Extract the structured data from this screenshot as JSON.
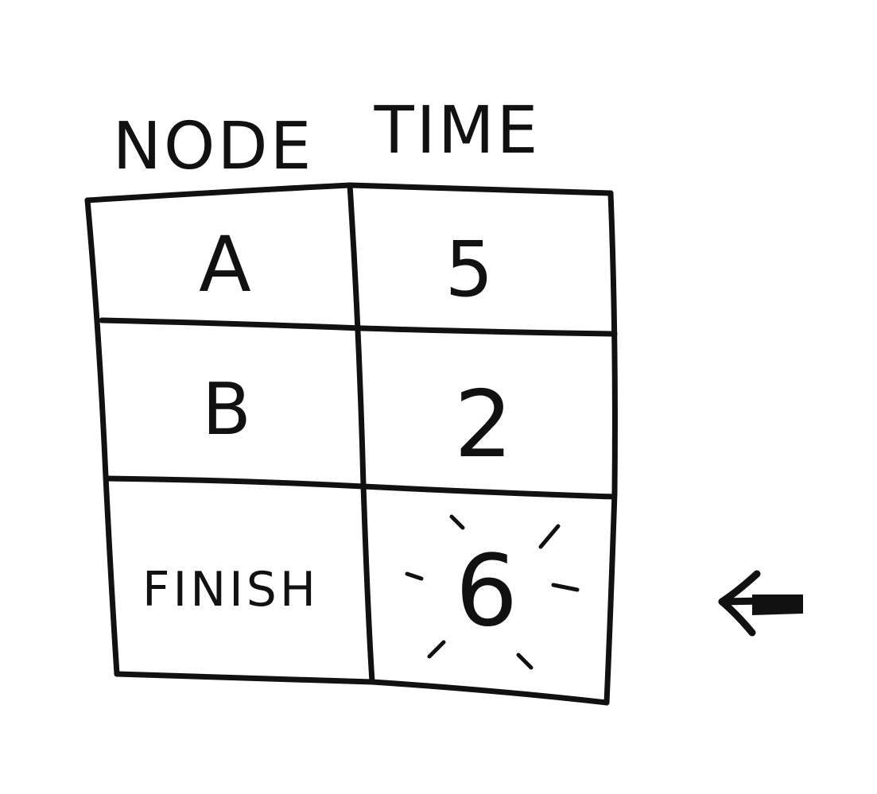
{
  "header": {
    "node_label": "NODE",
    "time_label": "TIME"
  },
  "table": {
    "rows": [
      {
        "node": "A",
        "time": "5"
      },
      {
        "node": "B",
        "time": "2"
      },
      {
        "node": "FINISH",
        "time": "6"
      }
    ]
  },
  "highlight": {
    "row": "FINISH",
    "marker_icon": "left-arrow-icon",
    "emphasis_icon": "sparkle-burst-icon"
  }
}
